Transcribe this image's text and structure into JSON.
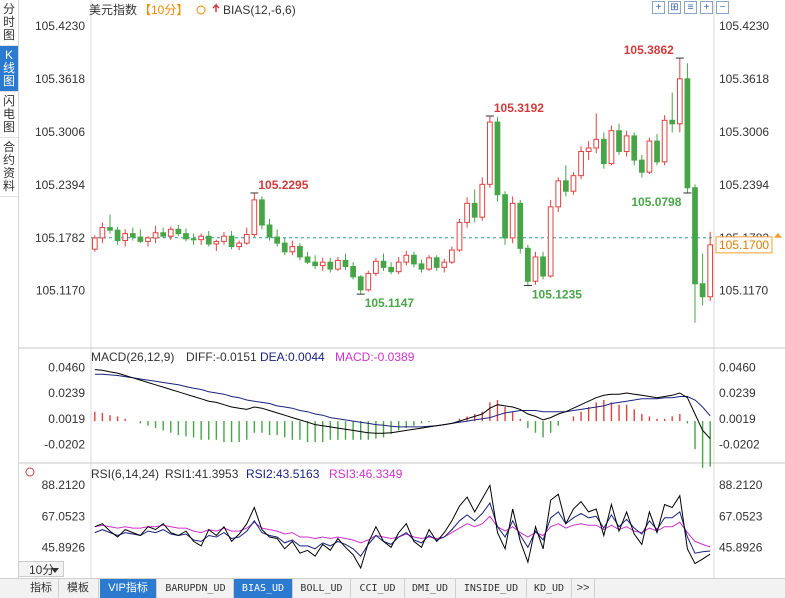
{
  "side_tabs": [
    {
      "label": "分时图",
      "active": false
    },
    {
      "label": "K线图",
      "active": true
    },
    {
      "label": "闪电图",
      "active": false
    },
    {
      "label": "合约资料",
      "active": false
    }
  ],
  "header": {
    "instrument": "美元指数",
    "period_tag": "【10分】",
    "indicator": "BIAS(12,-6,6)"
  },
  "toolbar": {
    "icons": [
      "expand-icon",
      "grid-icon",
      "list-icon",
      "plus-icon",
      "minus-icon"
    ],
    "glyphs": [
      "+",
      "⊞",
      "≡",
      "+",
      "−"
    ]
  },
  "price_panel": {
    "y_ticks": [
      "105.4230",
      "105.3618",
      "105.3006",
      "105.2394",
      "105.1782",
      "105.1170"
    ],
    "current_price": "105.1700",
    "ref_price": "105.1782",
    "annotations": [
      {
        "label": "105.2295",
        "color": "#d23b3b"
      },
      {
        "label": "105.1147",
        "color": "#4aa64a"
      },
      {
        "label": "105.3192",
        "color": "#d23b3b"
      },
      {
        "label": "105.1235",
        "color": "#4aa64a"
      },
      {
        "label": "105.3862",
        "color": "#d23b3b"
      },
      {
        "label": "105.0798",
        "color": "#4aa64a"
      }
    ]
  },
  "macd_panel": {
    "title": "MACD(26,12,9)",
    "diff_label": "DIFF:-0.0151",
    "dea_label": "DEA:0.0044",
    "macd_label": "MACD:-0.0389",
    "y_ticks": [
      "0.0460",
      "0.0239",
      "0.0019",
      "-0.0202"
    ]
  },
  "rsi_panel": {
    "title": "RSI(6,14,24)",
    "rsi1_label": "RSI1:41.3953",
    "rsi2_label": "RSI2:43.5163",
    "rsi3_label": "RSI3:46.3349",
    "y_ticks": [
      "88.2120",
      "67.0523",
      "45.8926"
    ]
  },
  "period_select": "10分",
  "bottom_tabs": [
    "指标",
    "模板",
    "VIP指标",
    "BARUPDN_UD",
    "BIAS_UD",
    "BOLL_UD",
    "CCI_UD",
    "DMI_UD",
    "INSIDE_UD",
    "KD_UD",
    ">>"
  ],
  "colors": {
    "up": "#e04141",
    "down": "#46a546",
    "accent": "#2b7ad0",
    "diff": "#000000",
    "dea": "#1a237e",
    "macd": "#cc33cc"
  },
  "chart_data": {
    "type": "candlestick",
    "price_ylim": [
      105.06,
      105.43
    ],
    "candles": [
      [
        105.165,
        105.181,
        105.162,
        105.178
      ],
      [
        105.178,
        105.196,
        105.172,
        105.19
      ],
      [
        105.19,
        105.205,
        105.183,
        105.187
      ],
      [
        105.187,
        105.191,
        105.17,
        105.175
      ],
      [
        105.175,
        105.188,
        105.168,
        105.183
      ],
      [
        105.183,
        105.19,
        105.175,
        105.179
      ],
      [
        105.179,
        105.188,
        105.172,
        105.174
      ],
      [
        105.174,
        105.18,
        105.168,
        105.178
      ],
      [
        105.178,
        105.192,
        105.172,
        105.184
      ],
      [
        105.184,
        105.19,
        105.178,
        105.18
      ],
      [
        105.18,
        105.191,
        105.176,
        105.188
      ],
      [
        105.188,
        105.193,
        105.18,
        105.183
      ],
      [
        105.183,
        105.189,
        105.174,
        105.177
      ],
      [
        105.177,
        105.183,
        105.17,
        105.176
      ],
      [
        105.176,
        105.183,
        105.17,
        105.18
      ],
      [
        105.18,
        105.186,
        105.168,
        105.171
      ],
      [
        105.171,
        105.176,
        105.163,
        105.174
      ],
      [
        105.174,
        105.185,
        105.17,
        105.18
      ],
      [
        105.18,
        105.186,
        105.165,
        105.168
      ],
      [
        105.168,
        105.175,
        105.164,
        105.172
      ],
      [
        105.172,
        105.19,
        105.17,
        105.182
      ],
      [
        105.182,
        105.23,
        105.179,
        105.222
      ],
      [
        105.222,
        105.226,
        105.188,
        105.193
      ],
      [
        105.193,
        105.2,
        105.175,
        105.179
      ],
      [
        105.179,
        105.188,
        105.168,
        105.172
      ],
      [
        105.172,
        105.178,
        105.158,
        105.162
      ],
      [
        105.162,
        105.175,
        105.158,
        105.168
      ],
      [
        105.168,
        105.172,
        105.152,
        105.156
      ],
      [
        105.156,
        105.162,
        105.148,
        105.15
      ],
      [
        105.15,
        105.158,
        105.142,
        105.146
      ],
      [
        105.146,
        105.155,
        105.14,
        105.15
      ],
      [
        105.15,
        105.155,
        105.138,
        105.142
      ],
      [
        105.142,
        105.156,
        105.14,
        105.152
      ],
      [
        105.152,
        105.16,
        105.141,
        105.145
      ],
      [
        105.145,
        105.15,
        105.13,
        105.133
      ],
      [
        105.133,
        105.135,
        105.113,
        105.118
      ],
      [
        105.118,
        105.14,
        105.116,
        105.137
      ],
      [
        105.137,
        105.155,
        105.134,
        105.151
      ],
      [
        105.151,
        105.16,
        105.14,
        105.144
      ],
      [
        105.144,
        105.15,
        105.136,
        105.139
      ],
      [
        105.139,
        105.156,
        105.136,
        105.15
      ],
      [
        105.15,
        105.163,
        105.146,
        105.158
      ],
      [
        105.158,
        105.162,
        105.144,
        105.148
      ],
      [
        105.148,
        105.153,
        105.138,
        105.142
      ],
      [
        105.142,
        105.158,
        105.14,
        105.155
      ],
      [
        105.155,
        105.158,
        105.14,
        105.144
      ],
      [
        105.144,
        105.154,
        105.138,
        105.15
      ],
      [
        105.15,
        105.168,
        105.148,
        105.164
      ],
      [
        105.164,
        105.2,
        105.162,
        105.196
      ],
      [
        105.196,
        105.225,
        105.19,
        105.218
      ],
      [
        105.218,
        105.234,
        105.196,
        105.202
      ],
      [
        105.202,
        105.248,
        105.198,
        105.24
      ],
      [
        105.24,
        105.319,
        105.236,
        105.312
      ],
      [
        105.312,
        105.318,
        105.22,
        105.228
      ],
      [
        105.228,
        105.232,
        105.17,
        105.178
      ],
      [
        105.178,
        105.226,
        105.172,
        105.218
      ],
      [
        105.218,
        105.222,
        105.16,
        105.166
      ],
      [
        105.166,
        105.17,
        105.123,
        105.128
      ],
      [
        105.128,
        105.162,
        105.124,
        105.156
      ],
      [
        105.156,
        105.162,
        105.13,
        105.134
      ],
      [
        105.134,
        105.222,
        105.132,
        105.214
      ],
      [
        105.214,
        105.248,
        105.208,
        105.244
      ],
      [
        105.244,
        105.262,
        105.226,
        105.232
      ],
      [
        105.232,
        105.254,
        105.228,
        105.25
      ],
      [
        105.25,
        105.284,
        105.246,
        105.278
      ],
      [
        105.278,
        105.29,
        105.268,
        105.282
      ],
      [
        105.282,
        105.322,
        105.276,
        105.292
      ],
      [
        105.292,
        105.3,
        105.258,
        105.264
      ],
      [
        105.264,
        105.308,
        105.262,
        105.302
      ],
      [
        105.302,
        105.31,
        105.274,
        105.278
      ],
      [
        105.278,
        105.302,
        105.272,
        105.296
      ],
      [
        105.296,
        105.3,
        105.262,
        105.268
      ],
      [
        105.268,
        105.274,
        105.248,
        105.254
      ],
      [
        105.254,
        105.294,
        105.252,
        105.29
      ],
      [
        105.29,
        105.298,
        105.262,
        105.266
      ],
      [
        105.266,
        105.32,
        105.262,
        105.314
      ],
      [
        105.314,
        105.346,
        105.3,
        105.31
      ],
      [
        105.31,
        105.386,
        105.3,
        105.362
      ],
      [
        105.362,
        105.38,
        105.23,
        105.236
      ],
      [
        105.236,
        105.24,
        105.08,
        105.125
      ],
      [
        105.125,
        105.16,
        105.1,
        105.11
      ],
      [
        105.11,
        105.185,
        105.105,
        105.17
      ]
    ],
    "macd_ylim": [
      -0.035,
      0.0505
    ],
    "macd_diff": [
      0.044,
      0.0435,
      0.042,
      0.041,
      0.039,
      0.037,
      0.035,
      0.033,
      0.031,
      0.029,
      0.027,
      0.025,
      0.023,
      0.021,
      0.019,
      0.017,
      0.016,
      0.014,
      0.012,
      0.011,
      0.01,
      0.012,
      0.011,
      0.009,
      0.007,
      0.005,
      0.003,
      0.001,
      -0.001,
      -0.003,
      -0.004,
      -0.005,
      -0.006,
      -0.007,
      -0.008,
      -0.009,
      -0.01,
      -0.0105,
      -0.0105,
      -0.01,
      -0.009,
      -0.008,
      -0.007,
      -0.006,
      -0.005,
      -0.004,
      -0.003,
      -0.002,
      0.0,
      0.002,
      0.004,
      0.006,
      0.011,
      0.014,
      0.013,
      0.012,
      0.01,
      0.006,
      0.004,
      0.001,
      0.003,
      0.006,
      0.008,
      0.011,
      0.014,
      0.017,
      0.02,
      0.022,
      0.023,
      0.023,
      0.024,
      0.023,
      0.022,
      0.021,
      0.02,
      0.021,
      0.022,
      0.024,
      0.02,
      0.006,
      -0.008,
      -0.0151
    ],
    "macd_dea": [
      0.04,
      0.04,
      0.0395,
      0.039,
      0.038,
      0.037,
      0.036,
      0.035,
      0.034,
      0.033,
      0.032,
      0.031,
      0.0295,
      0.028,
      0.027,
      0.025,
      0.024,
      0.023,
      0.021,
      0.02,
      0.018,
      0.017,
      0.016,
      0.015,
      0.013,
      0.012,
      0.011,
      0.009,
      0.008,
      0.006,
      0.005,
      0.003,
      0.002,
      0.001,
      0.0,
      -0.001,
      -0.002,
      -0.003,
      -0.0035,
      -0.0045,
      -0.005,
      -0.005,
      -0.005,
      -0.005,
      -0.0045,
      -0.004,
      -0.003,
      -0.002,
      -0.001,
      0.0,
      0.001,
      0.002,
      0.003,
      0.005,
      0.007,
      0.008,
      0.009,
      0.009,
      0.009,
      0.008,
      0.008,
      0.008,
      0.008,
      0.009,
      0.01,
      0.011,
      0.012,
      0.013,
      0.015,
      0.016,
      0.017,
      0.018,
      0.019,
      0.019,
      0.019,
      0.02,
      0.02,
      0.021,
      0.021,
      0.018,
      0.012,
      0.0044
    ],
    "rsi_ylim": [
      32,
      95
    ],
    "rsi1": [
      60,
      62,
      57,
      53,
      58,
      56,
      54,
      60,
      58,
      62,
      56,
      54,
      57,
      50,
      47,
      58,
      54,
      60,
      50,
      55,
      62,
      73,
      58,
      53,
      52,
      45,
      50,
      42,
      44,
      40,
      48,
      44,
      52,
      46,
      41,
      32,
      49,
      60,
      50,
      46,
      56,
      62,
      50,
      46,
      58,
      50,
      56,
      64,
      74,
      80,
      70,
      79,
      88,
      56,
      45,
      72,
      50,
      36,
      60,
      45,
      78,
      82,
      62,
      72,
      77,
      70,
      72,
      54,
      75,
      57,
      70,
      55,
      48,
      70,
      56,
      75,
      73,
      81,
      45,
      35,
      38,
      41.4
    ],
    "rsi2": [
      56,
      58,
      56,
      54,
      56,
      55,
      54,
      57,
      56,
      58,
      55,
      54,
      55,
      51,
      50,
      54,
      53,
      56,
      52,
      53,
      57,
      64,
      56,
      54,
      53,
      49,
      51,
      47,
      47,
      45,
      49,
      47,
      50,
      48,
      45,
      40,
      48,
      54,
      50,
      48,
      53,
      56,
      51,
      49,
      54,
      51,
      53,
      58,
      64,
      68,
      64,
      69,
      76,
      60,
      53,
      64,
      54,
      46,
      57,
      51,
      66,
      70,
      62,
      66,
      69,
      66,
      67,
      59,
      68,
      60,
      65,
      59,
      55,
      64,
      58,
      66,
      66,
      70,
      53,
      42,
      43,
      43.5
    ],
    "rsi3": [
      60,
      61,
      60,
      59,
      60,
      59,
      59,
      60,
      60,
      61,
      60,
      59,
      59,
      57,
      56,
      58,
      57,
      59,
      57,
      57,
      59,
      63,
      59,
      58,
      57,
      55,
      56,
      53,
      53,
      52,
      53,
      52,
      53,
      52,
      51,
      49,
      51,
      54,
      53,
      52,
      53,
      55,
      53,
      52,
      53,
      52,
      53,
      56,
      59,
      62,
      60,
      62,
      67,
      60,
      57,
      60,
      56,
      53,
      56,
      54,
      60,
      62,
      59,
      61,
      62,
      61,
      61,
      58,
      61,
      58,
      60,
      57,
      56,
      59,
      57,
      60,
      60,
      63,
      56,
      50,
      48,
      46.3
    ]
  }
}
